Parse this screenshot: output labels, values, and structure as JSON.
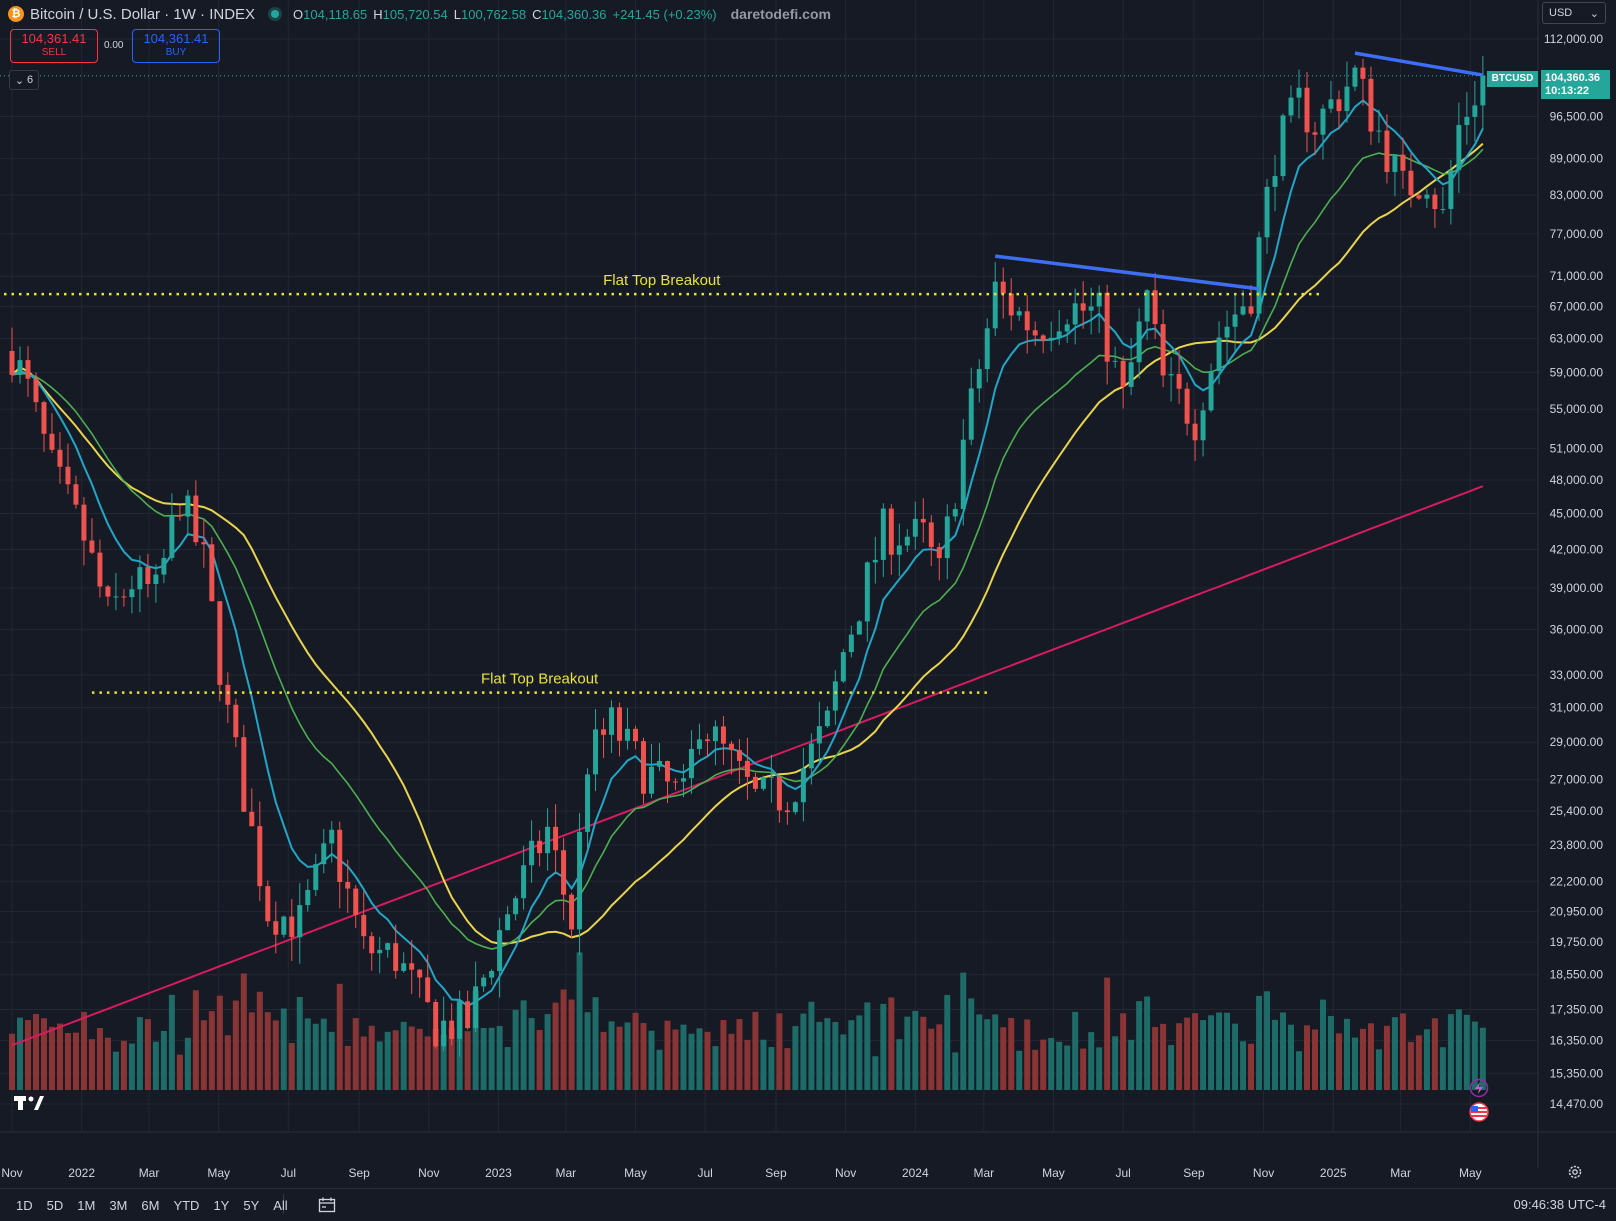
{
  "header": {
    "symbol_badge": "₿",
    "title": "Bitcoin / U.S. Dollar · 1W · INDEX",
    "open_key": "O",
    "open": "104,118.65",
    "high_key": "H",
    "high": "105,720.54",
    "low_key": "L",
    "low": "100,762.58",
    "close_key": "C",
    "close": "104,360.36",
    "change": "+241.45 (+0.23%)",
    "watermark": "daretodefi.com"
  },
  "trade": {
    "sell_price": "104,361.41",
    "sell_label": "SELL",
    "spread": "0.00",
    "buy_price": "104,361.41",
    "buy_label": "BUY"
  },
  "indicators_toggle": {
    "count": "6",
    "chevron": "⌄"
  },
  "currency": {
    "value": "USD",
    "chevron": "⌄"
  },
  "last_price": {
    "symbol": "BTCUSD",
    "price": "104,360.36",
    "countdown": "10:13:22"
  },
  "bottom": {
    "timeframes": [
      "1D",
      "5D",
      "1M",
      "3M",
      "6M",
      "YTD",
      "1Y",
      "5Y",
      "All"
    ],
    "clock": "09:46:38 UTC-4"
  },
  "colors": {
    "bg": "#161a25",
    "up": "#26a69a",
    "down": "#ef5350",
    "vol_up": "#1f6b68",
    "vol_down": "#8a3535",
    "ema_fast": "#22a6c8",
    "ema_mid": "#4caf50",
    "sma_slow": "#e8d44d",
    "sma_long": "#d81b60",
    "trendline": "#3d6ef5",
    "breakout": "#e8e23a",
    "grid": "#232732",
    "text": "#d1d4dc"
  },
  "chart_data": {
    "type": "candlestick",
    "title": "Bitcoin / U.S. Dollar · 1W · INDEX",
    "scale": "log",
    "y_ticks": [
      112000,
      96500,
      89000,
      83000,
      77000,
      71000,
      67000,
      63000,
      59000,
      55000,
      51000,
      48000,
      45000,
      42000,
      39000,
      36000,
      33000,
      31000,
      29000,
      27000,
      25400,
      23800,
      22200,
      20950,
      19750,
      18550,
      17350,
      16350,
      15350,
      14470
    ],
    "y_tick_labels": [
      "112,000.00",
      "96,500.00",
      "89,000.00",
      "83,000.00",
      "77,000.00",
      "71,000.00",
      "67,000.00",
      "63,000.00",
      "59,000.00",
      "55,000.00",
      "51,000.00",
      "48,000.00",
      "45,000.00",
      "42,000.00",
      "39,000.00",
      "36,000.00",
      "33,000.00",
      "31,000.00",
      "29,000.00",
      "27,000.00",
      "25,400.00",
      "23,800.00",
      "22,200.00",
      "20,950.00",
      "19,750.00",
      "18,550.00",
      "17,350.00",
      "16,350.00",
      "15,350.00",
      "14,470.00"
    ],
    "x_labels": [
      {
        "label": "Nov",
        "date": "2021-11-01"
      },
      {
        "label": "2022",
        "date": "2022-01-01"
      },
      {
        "label": "Mar",
        "date": "2022-03-01"
      },
      {
        "label": "May",
        "date": "2022-05-01"
      },
      {
        "label": "Jul",
        "date": "2022-07-01"
      },
      {
        "label": "Sep",
        "date": "2022-09-01"
      },
      {
        "label": "Nov",
        "date": "2022-11-01"
      },
      {
        "label": "2023",
        "date": "2023-01-01"
      },
      {
        "label": "Mar",
        "date": "2023-03-01"
      },
      {
        "label": "May",
        "date": "2023-05-01"
      },
      {
        "label": "Jul",
        "date": "2023-07-01"
      },
      {
        "label": "Sep",
        "date": "2023-09-01"
      },
      {
        "label": "Nov",
        "date": "2023-11-01"
      },
      {
        "label": "2024",
        "date": "2024-01-01"
      },
      {
        "label": "Mar",
        "date": "2024-03-01"
      },
      {
        "label": "May",
        "date": "2024-05-01"
      },
      {
        "label": "Jul",
        "date": "2024-07-01"
      },
      {
        "label": "Sep",
        "date": "2024-09-01"
      },
      {
        "label": "Nov",
        "date": "2024-11-01"
      },
      {
        "label": "2025",
        "date": "2025-01-01"
      },
      {
        "label": "Mar",
        "date": "2025-03-01"
      },
      {
        "label": "May",
        "date": "2025-05-01"
      }
    ],
    "x_range": [
      "2021-10-25",
      "2025-05-13"
    ],
    "price_series": [
      {
        "date": "2021-11-01",
        "close": 61500
      },
      {
        "date": "2021-11-15",
        "close": 57000
      },
      {
        "date": "2021-12-06",
        "close": 49000
      },
      {
        "date": "2022-01-03",
        "close": 43000
      },
      {
        "date": "2022-01-24",
        "close": 37000
      },
      {
        "date": "2022-02-14",
        "close": 39500
      },
      {
        "date": "2022-03-07",
        "close": 38500
      },
      {
        "date": "2022-03-28",
        "close": 46500
      },
      {
        "date": "2022-04-18",
        "close": 41000
      },
      {
        "date": "2022-05-09",
        "close": 30500
      },
      {
        "date": "2022-06-13",
        "close": 21000
      },
      {
        "date": "2022-07-11",
        "close": 20500
      },
      {
        "date": "2022-08-08",
        "close": 24000
      },
      {
        "date": "2022-09-05",
        "close": 19500
      },
      {
        "date": "2022-10-03",
        "close": 19200
      },
      {
        "date": "2022-11-07",
        "close": 16800
      },
      {
        "date": "2022-12-05",
        "close": 16900
      },
      {
        "date": "2023-01-09",
        "close": 21000
      },
      {
        "date": "2023-02-13",
        "close": 24500
      },
      {
        "date": "2023-03-06",
        "close": 20500
      },
      {
        "date": "2023-03-20",
        "close": 28000
      },
      {
        "date": "2023-04-10",
        "close": 30000
      },
      {
        "date": "2023-05-08",
        "close": 27500
      },
      {
        "date": "2023-06-12",
        "close": 26000
      },
      {
        "date": "2023-06-26",
        "close": 30400
      },
      {
        "date": "2023-08-14",
        "close": 26000
      },
      {
        "date": "2023-09-11",
        "close": 26200
      },
      {
        "date": "2023-10-16",
        "close": 30000
      },
      {
        "date": "2023-10-30",
        "close": 34500
      },
      {
        "date": "2023-12-04",
        "close": 43500
      },
      {
        "date": "2024-01-08",
        "close": 43000
      },
      {
        "date": "2024-01-22",
        "close": 40000
      },
      {
        "date": "2024-02-12",
        "close": 51500
      },
      {
        "date": "2024-03-11",
        "close": 69000
      },
      {
        "date": "2024-04-15",
        "close": 64000
      },
      {
        "date": "2024-05-13",
        "close": 67000
      },
      {
        "date": "2024-06-10",
        "close": 66000
      },
      {
        "date": "2024-07-01",
        "close": 56000
      },
      {
        "date": "2024-07-22",
        "close": 68000
      },
      {
        "date": "2024-08-05",
        "close": 58000
      },
      {
        "date": "2024-09-02",
        "close": 54000
      },
      {
        "date": "2024-09-23",
        "close": 63500
      },
      {
        "date": "2024-10-21",
        "close": 69000
      },
      {
        "date": "2024-11-11",
        "close": 90000
      },
      {
        "date": "2024-12-02",
        "close": 99000
      },
      {
        "date": "2024-12-16",
        "close": 95000
      },
      {
        "date": "2025-01-20",
        "close": 104500
      },
      {
        "date": "2025-02-03",
        "close": 97000
      },
      {
        "date": "2025-03-03",
        "close": 84000
      },
      {
        "date": "2025-03-24",
        "close": 86000
      },
      {
        "date": "2025-04-07",
        "close": 79500
      },
      {
        "date": "2025-04-21",
        "close": 94500
      },
      {
        "date": "2025-05-12",
        "close": 104360
      }
    ],
    "annotations": [
      {
        "text": "Flat Top Breakout",
        "price": 68600,
        "from": "2021-10-25",
        "to": "2024-12-20"
      },
      {
        "text": "Flat Top Breakout",
        "price": 31900,
        "from": "2022-01-10",
        "to": "2024-03-04"
      }
    ],
    "trendlines": [
      {
        "from": {
          "date": "2024-03-11",
          "price": 73800
        },
        "to": {
          "date": "2024-10-28",
          "price": 69300
        }
      },
      {
        "from": {
          "date": "2025-01-20",
          "price": 109000
        },
        "to": {
          "date": "2025-05-12",
          "price": 104500
        }
      }
    ],
    "last_price": 104360.36
  }
}
